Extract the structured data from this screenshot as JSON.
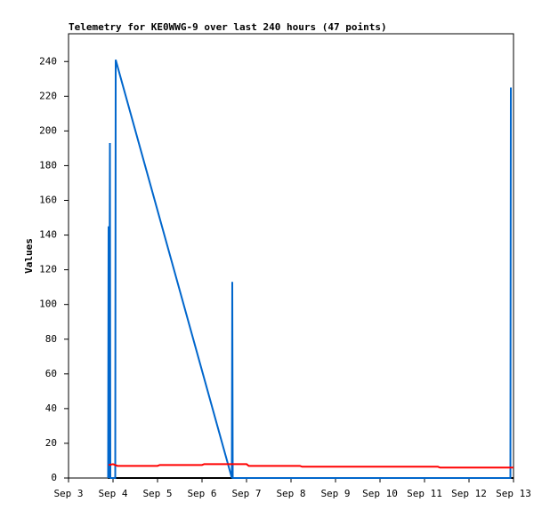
{
  "chart_data": {
    "type": "line",
    "title": "Telemetry for KE0WWG-9 over last 240 hours (47 points)",
    "y_label": "Values",
    "xlim": [
      3,
      13
    ],
    "xticks": [
      {
        "value": 3,
        "label": "Sep 3"
      },
      {
        "value": 4,
        "label": "Sep 4"
      },
      {
        "value": 5,
        "label": "Sep 5"
      },
      {
        "value": 6,
        "label": "Sep 6"
      },
      {
        "value": 7,
        "label": "Sep 7"
      },
      {
        "value": 8,
        "label": "Sep 8"
      },
      {
        "value": 9,
        "label": "Sep 9"
      },
      {
        "value": 10,
        "label": "Sep 10"
      },
      {
        "value": 11,
        "label": "Sep 11"
      },
      {
        "value": 12,
        "label": "Sep 12"
      },
      {
        "value": 13,
        "label": "Sep 13"
      }
    ],
    "ylim": [
      0,
      256
    ],
    "yticks": [
      0,
      20,
      40,
      60,
      80,
      100,
      120,
      140,
      160,
      180,
      200,
      220,
      240
    ],
    "series": [
      {
        "color": "#000000",
        "x": [
          3.89,
          13
        ],
        "values": [
          0,
          0
        ]
      },
      {
        "color": "#0066cc",
        "x": [
          3.89,
          3.9,
          3.91,
          3.93,
          3.94,
          4.05,
          4.06,
          6.67,
          6.68,
          6.69,
          12.93,
          12.94
        ],
        "values": [
          0,
          145,
          0,
          193,
          0,
          0,
          241,
          0,
          113,
          0,
          0,
          225
        ]
      },
      {
        "color": "#ff0000",
        "x": [
          3.9,
          4.0,
          4.1,
          5.0,
          5.05,
          6.0,
          6.05,
          7.0,
          7.05,
          8.2,
          8.25,
          11.3,
          11.35,
          13
        ],
        "values": [
          7.5,
          8,
          7,
          7,
          7.5,
          7.5,
          8,
          8,
          7,
          7,
          6.5,
          6.5,
          6,
          6
        ]
      }
    ]
  }
}
